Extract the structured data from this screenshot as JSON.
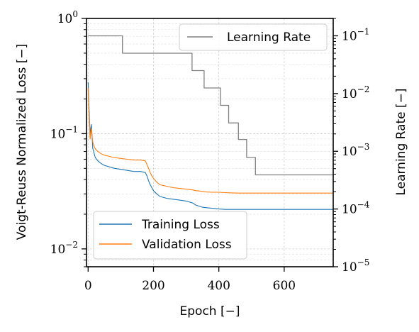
{
  "chart_data": {
    "type": "line",
    "xlabel": "Epoch [−]",
    "ylabel_left": "Voigt-Reuss Normalized Loss [−]",
    "ylabel_right": "Learning Rate [−]",
    "xlim": [
      -5,
      750
    ],
    "ylim_left": [
      0.007,
      1.0
    ],
    "ylim_right": [
      1e-05,
      0.2
    ],
    "yscale_left": "log",
    "yscale_right": "log",
    "grid": true,
    "x_ticks": [
      {
        "value": 0,
        "label": "0"
      },
      {
        "value": 200,
        "label": "200"
      },
      {
        "value": 400,
        "label": "400"
      },
      {
        "value": 600,
        "label": "600"
      }
    ],
    "y_ticks_left": [
      {
        "value": 1.0,
        "base": "10",
        "exp": "0"
      },
      {
        "value": 0.1,
        "base": "10",
        "exp": "−1"
      },
      {
        "value": 0.01,
        "base": "10",
        "exp": "−2"
      }
    ],
    "y_ticks_right": [
      {
        "value": 0.1,
        "base": "10",
        "exp": "−1"
      },
      {
        "value": 0.01,
        "base": "10",
        "exp": "−2"
      },
      {
        "value": 0.001,
        "base": "10",
        "exp": "−3"
      },
      {
        "value": 0.0001,
        "base": "10",
        "exp": "−4"
      },
      {
        "value": 1e-05,
        "base": "10",
        "exp": "−5"
      }
    ],
    "series": [
      {
        "name": "Training Loss",
        "axis": "left",
        "color": "#1f77b4",
        "x": [
          0,
          3,
          6,
          10,
          14,
          18,
          22,
          26,
          30,
          40,
          50,
          60,
          80,
          100,
          120,
          140,
          160,
          175,
          180,
          185,
          190,
          195,
          200,
          210,
          220,
          240,
          260,
          280,
          300,
          320,
          330,
          340,
          350,
          360,
          380,
          400,
          420,
          440,
          460,
          500,
          550,
          600,
          650,
          700,
          750
        ],
        "values": [
          0.28,
          0.16,
          0.1,
          0.12,
          0.075,
          0.068,
          0.062,
          0.06,
          0.058,
          0.055,
          0.053,
          0.052,
          0.05,
          0.049,
          0.048,
          0.047,
          0.047,
          0.046,
          0.043,
          0.039,
          0.036,
          0.034,
          0.032,
          0.03,
          0.0285,
          0.0275,
          0.027,
          0.0265,
          0.026,
          0.025,
          0.024,
          0.0235,
          0.023,
          0.0228,
          0.0225,
          0.0222,
          0.022,
          0.022,
          0.022,
          0.022,
          0.022,
          0.022,
          0.022,
          0.022,
          0.022
        ]
      },
      {
        "name": "Validation Loss",
        "axis": "left",
        "color": "#ff7f0e",
        "x": [
          0,
          3,
          6,
          10,
          14,
          18,
          22,
          26,
          30,
          40,
          50,
          60,
          80,
          100,
          120,
          140,
          160,
          175,
          180,
          185,
          190,
          195,
          200,
          210,
          220,
          240,
          260,
          280,
          300,
          320,
          330,
          340,
          350,
          360,
          380,
          400,
          420,
          440,
          460,
          500,
          550,
          600,
          650,
          700,
          750
        ],
        "values": [
          0.25,
          0.14,
          0.09,
          0.11,
          0.085,
          0.078,
          0.074,
          0.072,
          0.07,
          0.067,
          0.065,
          0.064,
          0.062,
          0.061,
          0.06,
          0.059,
          0.059,
          0.058,
          0.054,
          0.05,
          0.046,
          0.043,
          0.041,
          0.038,
          0.036,
          0.035,
          0.034,
          0.0335,
          0.033,
          0.0325,
          0.032,
          0.0318,
          0.0315,
          0.0312,
          0.031,
          0.031,
          0.0308,
          0.0306,
          0.0305,
          0.0305,
          0.0305,
          0.0305,
          0.0305,
          0.0305,
          0.0305
        ]
      },
      {
        "name": "Learning Rate",
        "axis": "right",
        "color": "#808080",
        "step": true,
        "x": [
          0,
          105,
          105,
          318,
          318,
          355,
          355,
          405,
          405,
          430,
          430,
          460,
          460,
          485,
          485,
          512,
          512,
          750
        ],
        "values": [
          0.1,
          0.1,
          0.05,
          0.05,
          0.025,
          0.025,
          0.0125,
          0.0125,
          0.00625,
          0.00625,
          0.0031,
          0.0031,
          0.0016,
          0.0016,
          0.00078,
          0.00078,
          0.00039,
          0.00039
        ]
      }
    ],
    "legends": [
      {
        "location": "upper right",
        "entries": [
          "Learning Rate"
        ]
      },
      {
        "location": "lower left",
        "entries": [
          "Training Loss",
          "Validation Loss"
        ]
      }
    ]
  }
}
